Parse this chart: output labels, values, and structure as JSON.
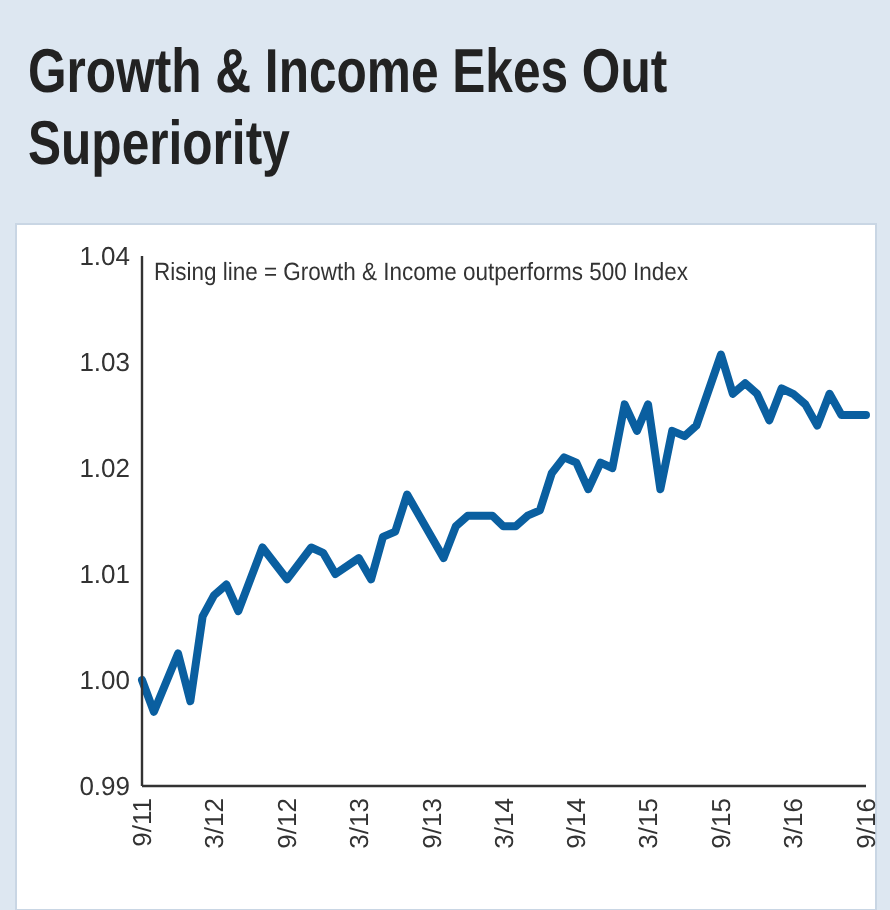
{
  "chart_data": {
    "type": "line",
    "title": "Growth & Income Ekes Out Superiority",
    "annotations": [
      "Rising line = Growth & Income outperforms 500 Index"
    ],
    "x": [
      "2011-09",
      "2011-10",
      "2011-12",
      "2012-01",
      "2012-02",
      "2012-03",
      "2012-04",
      "2012-05",
      "2012-07",
      "2012-09",
      "2012-11",
      "2012-12",
      "2013-01",
      "2013-03",
      "2013-04",
      "2013-05",
      "2013-06",
      "2013-07",
      "2013-10",
      "2013-11",
      "2013-12",
      "2014-02",
      "2014-03",
      "2014-04",
      "2014-05",
      "2014-06",
      "2014-07",
      "2014-08",
      "2014-09",
      "2014-10",
      "2014-11",
      "2014-12",
      "2015-01",
      "2015-02",
      "2015-03",
      "2015-04",
      "2015-05",
      "2015-06",
      "2015-07",
      "2015-09",
      "2015-10",
      "2015-11",
      "2015-12",
      "2016-01",
      "2016-02",
      "2016-03",
      "2016-04",
      "2016-05",
      "2016-06",
      "2016-07",
      "2016-09"
    ],
    "series": [
      {
        "color": "#0a5fa0",
        "values": [
          1.0,
          0.997,
          1.0025,
          0.998,
          1.006,
          1.008,
          1.009,
          1.0065,
          1.0125,
          1.0095,
          1.0125,
          1.012,
          1.01,
          1.0115,
          1.0095,
          1.0135,
          1.014,
          1.0175,
          1.0115,
          1.0145,
          1.0155,
          1.0155,
          1.0145,
          1.0145,
          1.0155,
          1.016,
          1.0195,
          1.021,
          1.0205,
          1.018,
          1.0205,
          1.02,
          1.026,
          1.0235,
          1.026,
          1.018,
          1.0235,
          1.023,
          1.024,
          1.0307,
          1.027,
          1.028,
          1.027,
          1.0245,
          1.0275,
          1.027,
          1.026,
          1.024,
          1.027,
          1.025,
          1.025
        ]
      }
    ],
    "xlim": [
      "2011-09",
      "2016-09"
    ],
    "xticks": [
      {
        "value": "2011-09",
        "label": "9/11"
      },
      {
        "value": "2012-03",
        "label": "3/12"
      },
      {
        "value": "2012-09",
        "label": "9/12"
      },
      {
        "value": "2013-03",
        "label": "3/13"
      },
      {
        "value": "2013-09",
        "label": "9/13"
      },
      {
        "value": "2014-03",
        "label": "3/14"
      },
      {
        "value": "2014-09",
        "label": "9/14"
      },
      {
        "value": "2015-03",
        "label": "3/15"
      },
      {
        "value": "2015-09",
        "label": "9/15"
      },
      {
        "value": "2016-03",
        "label": "3/16"
      },
      {
        "value": "2016-09",
        "label": "9/16"
      }
    ],
    "ylim": [
      0.99,
      1.04
    ],
    "yticks": [
      0.99,
      {
        "value": 1,
        "label": "1.00"
      },
      1.01,
      1.02,
      1.03,
      1.04
    ],
    "grid": false,
    "marker": "none",
    "line_style": "solid"
  }
}
